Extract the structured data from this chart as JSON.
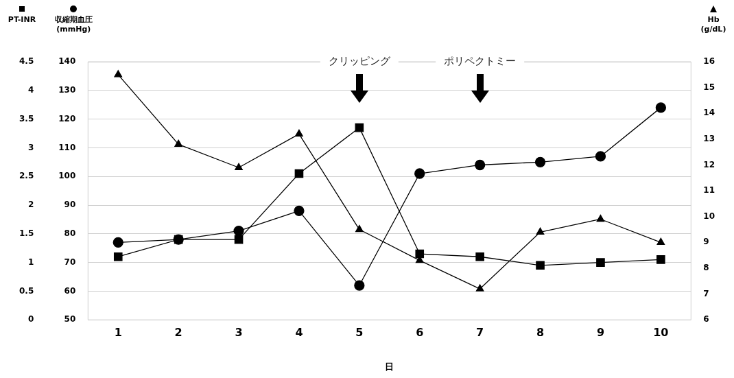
{
  "chart_data": {
    "type": "line",
    "xlabel": "日",
    "ylabel": "収縮期血圧 (mmHg)",
    "y2label": "Hb (g/dL)",
    "y3label": "PT-INR",
    "categories": [
      "1",
      "2",
      "3",
      "4",
      "5",
      "6",
      "7",
      "8",
      "9",
      "10"
    ],
    "ylim": [
      50,
      140
    ],
    "yticks": [
      50,
      60,
      70,
      80,
      90,
      100,
      110,
      120,
      130,
      140
    ],
    "y2lim": [
      6,
      16
    ],
    "y2ticks": [
      6,
      7,
      8,
      9,
      10,
      11,
      12,
      13,
      14,
      15,
      16
    ],
    "y3lim": [
      0,
      4.5
    ],
    "y3ticks": [
      0,
      0.5,
      1,
      1.5,
      2,
      2.5,
      3,
      3.5,
      4,
      4.5
    ],
    "grid": "y",
    "legend": false,
    "line_style": "solid",
    "series": [
      {
        "color": "#000000",
        "axis": "y3",
        "marker": "square",
        "values": [
          1.1,
          1.4,
          1.4,
          2.55,
          3.35,
          1.15,
          1.1,
          0.95,
          1.0,
          1.05
        ]
      },
      {
        "color": "#000000",
        "axis": "y",
        "marker": "circle",
        "values": [
          77,
          78,
          81,
          88,
          62,
          101,
          104,
          105,
          107,
          124
        ]
      },
      {
        "color": "#000000",
        "axis": "y2",
        "marker": "triangle",
        "values": [
          15.5,
          12.8,
          11.9,
          13.2,
          9.5,
          8.3,
          7.2,
          9.4,
          9.9,
          9.0
        ]
      }
    ],
    "annotations": [
      "クリッピング",
      "ポリペクトミー"
    ]
  }
}
